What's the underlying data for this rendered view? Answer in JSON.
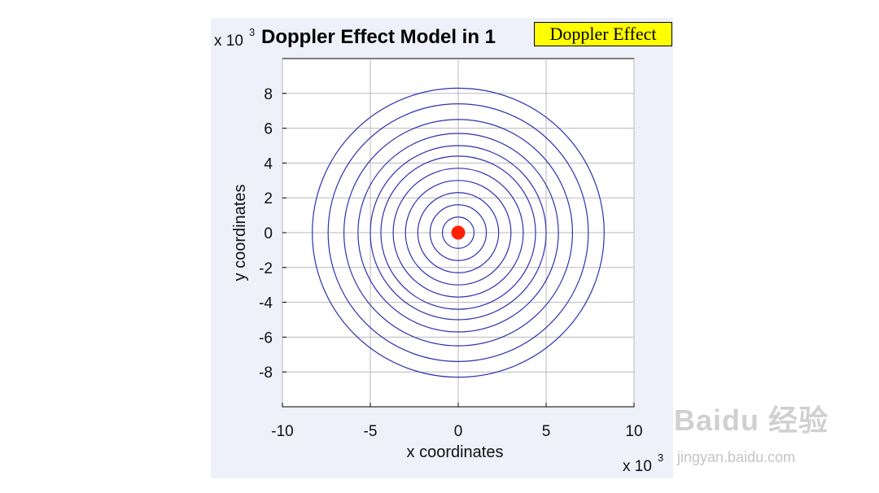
{
  "chart_data": {
    "type": "line",
    "title": "Doppler Effect Model in 1",
    "legend": "Doppler Effect",
    "legend_color": "#ffff00",
    "xlabel": "x coordinates",
    "ylabel": "y coordinates",
    "x_multiplier": "x 10",
    "y_multiplier": "x 10",
    "multiplier_exponent": "3",
    "xlim": [
      -10,
      10
    ],
    "ylim": [
      -10,
      10
    ],
    "xticks": [
      -10,
      -5,
      0,
      5,
      10
    ],
    "yticks": [
      -8,
      -6,
      -4,
      -2,
      0,
      2,
      4,
      6,
      8
    ],
    "grid": true,
    "circle_color": "#3030b0",
    "source_color": "#ff2200",
    "source": {
      "x": 0,
      "y": 0
    },
    "wavefront_radii": [
      0.9,
      1.6,
      2.3,
      3.0,
      3.7,
      4.4,
      5.0,
      5.7,
      6.5,
      7.4,
      8.3
    ]
  },
  "watermark": {
    "logo": "Baidu 经验",
    "url": "jingyan.baidu.com"
  }
}
